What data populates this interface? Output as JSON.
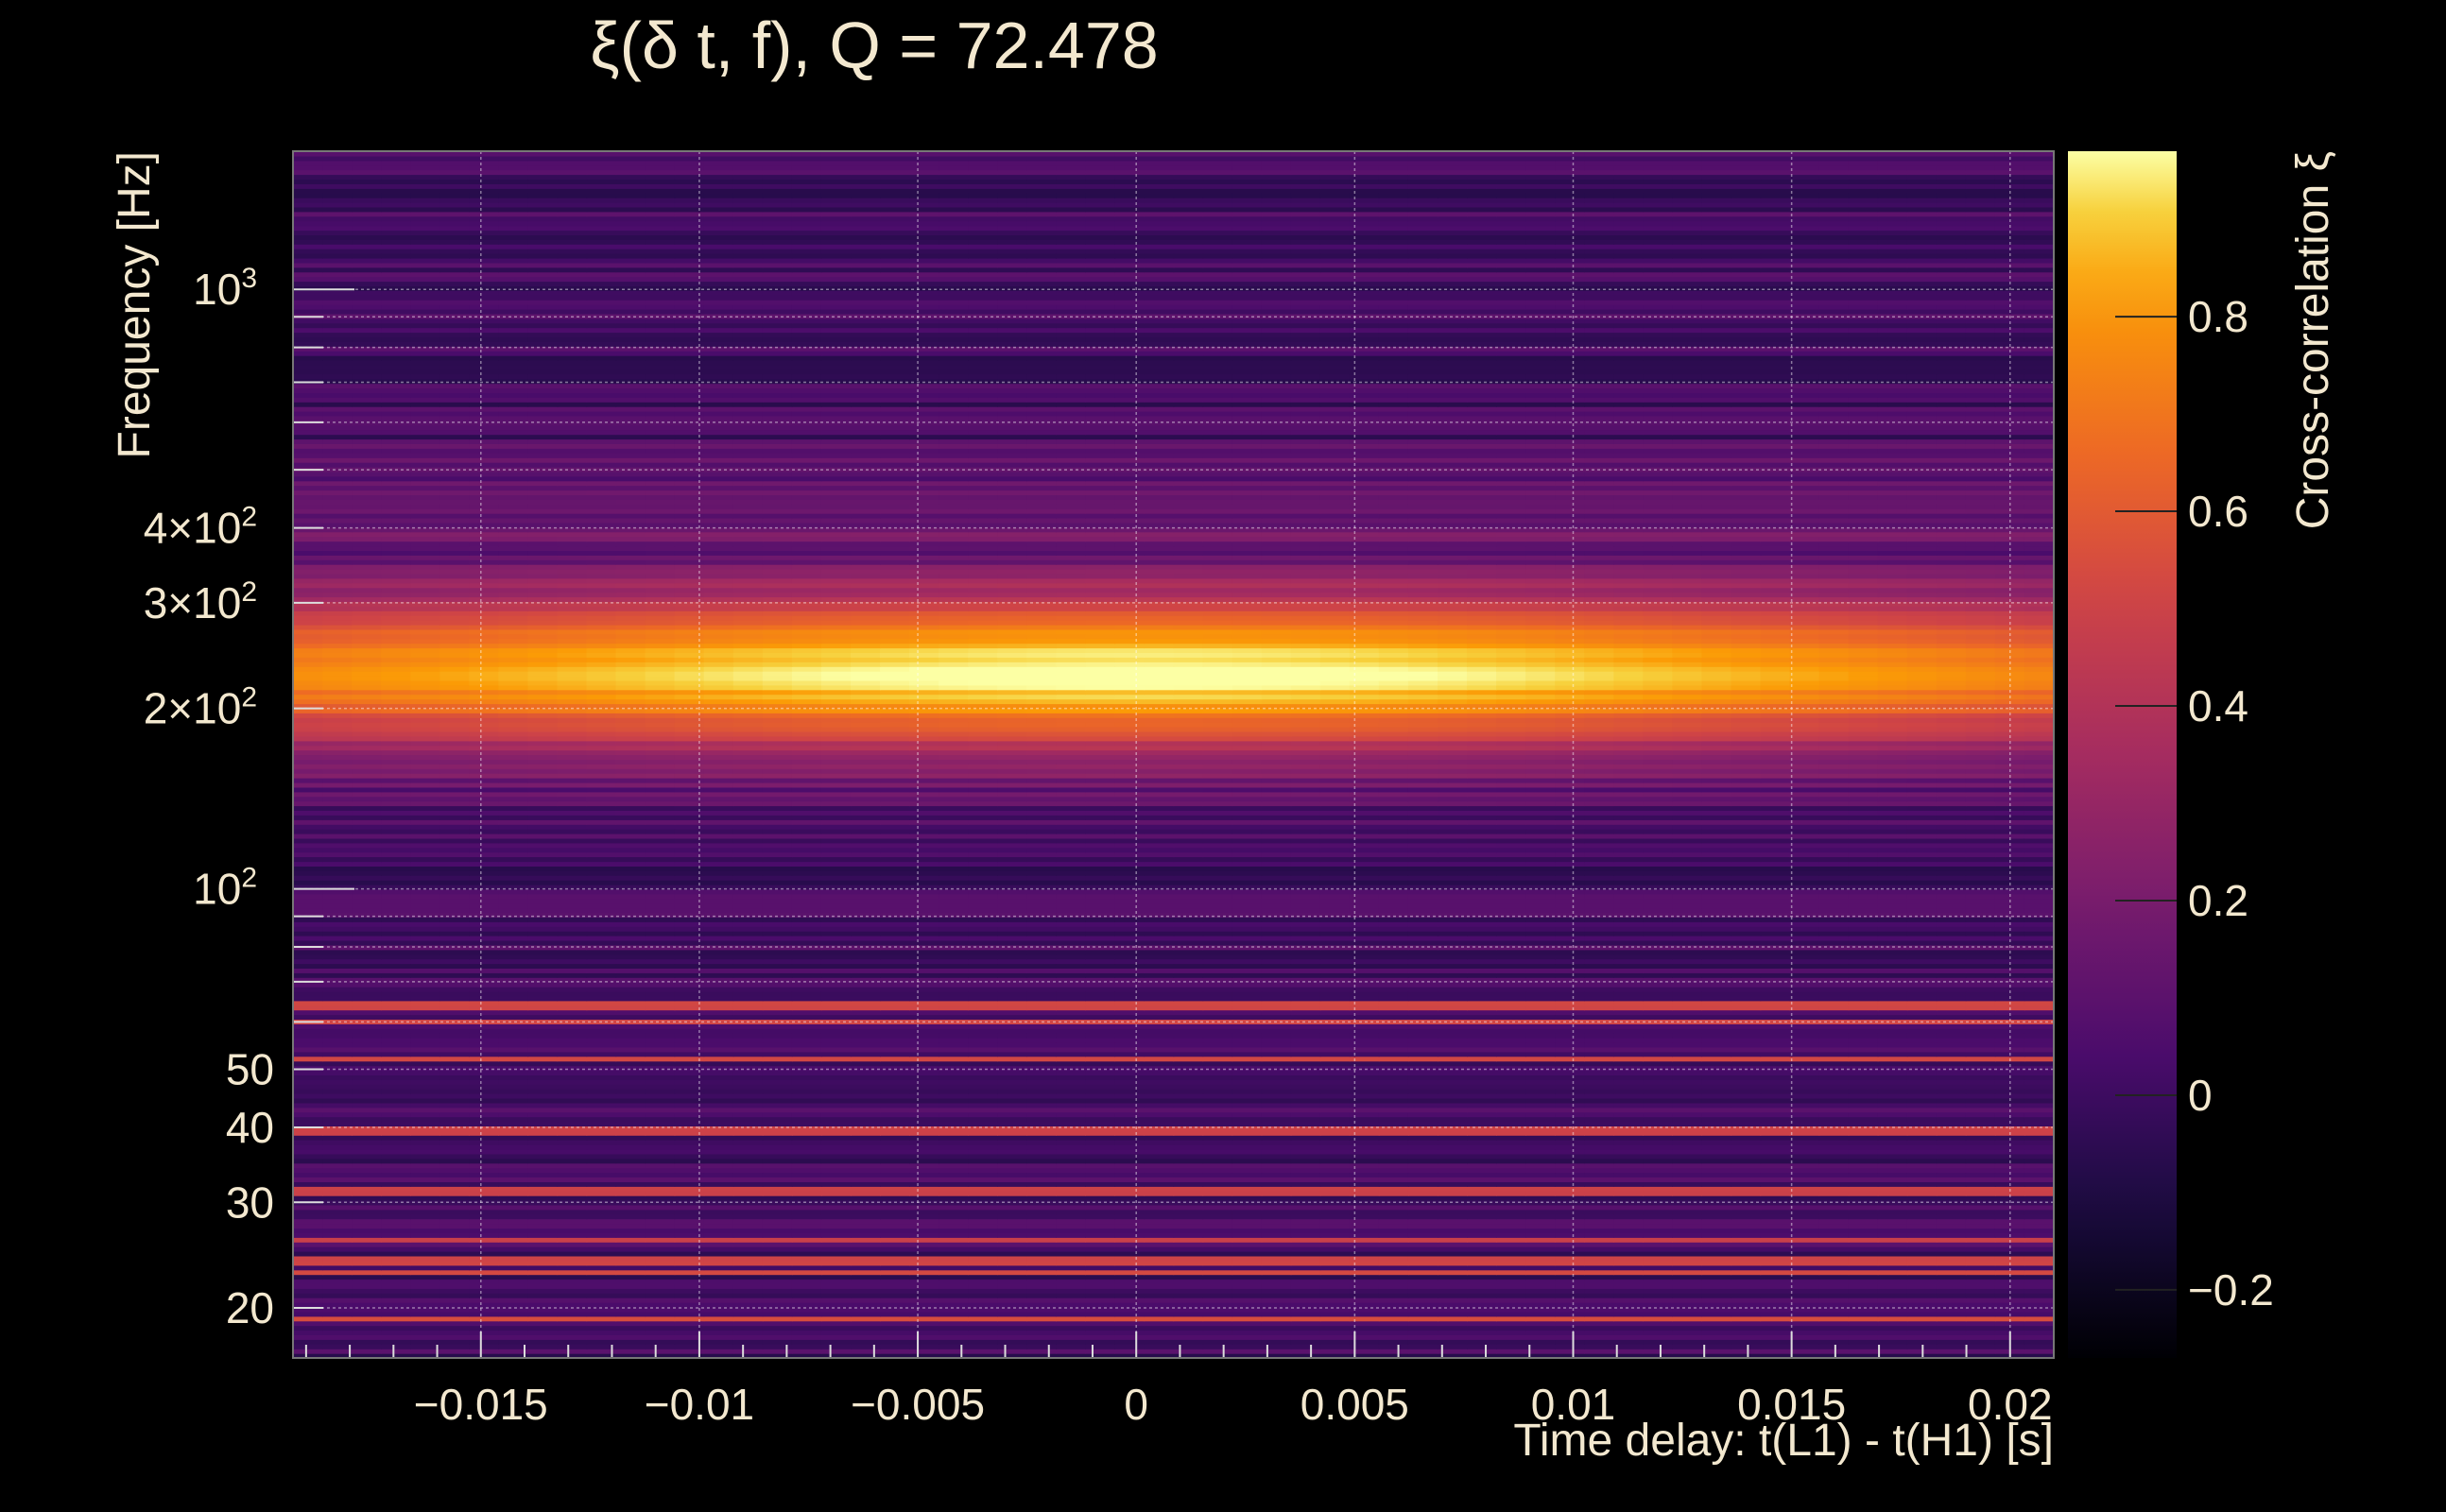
{
  "chart_data": {
    "type": "heatmap",
    "title": "ξ(δ t, f), Q = 72.478",
    "xlabel": "Time delay: t(L1) - t(H1) [s]",
    "ylabel": "Frequency [Hz]",
    "colorbar_label": "Cross-correlation ξ",
    "x_scale": "linear",
    "y_scale": "log",
    "xlim": [
      -0.0193,
      0.021
    ],
    "ylim": [
      16.5,
      1700
    ],
    "clim": [
      -0.27,
      0.97
    ],
    "colormap": "inferno",
    "grid": true,
    "x_ticks": [
      {
        "value": -0.015,
        "label": "−0.015"
      },
      {
        "value": -0.01,
        "label": "−0.01"
      },
      {
        "value": -0.005,
        "label": "−0.005"
      },
      {
        "value": 0,
        "label": "0"
      },
      {
        "value": 0.005,
        "label": "0.005"
      },
      {
        "value": 0.01,
        "label": "0.01"
      },
      {
        "value": 0.015,
        "label": "0.015"
      },
      {
        "value": 0.02,
        "label": "0.02"
      }
    ],
    "y_ticks": [
      {
        "value": 20,
        "label": "20"
      },
      {
        "value": 30,
        "label": "30"
      },
      {
        "value": 40,
        "label": "40"
      },
      {
        "value": 50,
        "label": "50"
      },
      {
        "value": 100,
        "label": "10",
        "sup": "2"
      },
      {
        "value": 200,
        "label": "2×10",
        "sup": "2"
      },
      {
        "value": 300,
        "label": "3×10",
        "sup": "2"
      },
      {
        "value": 400,
        "label": "4×10",
        "sup": "2"
      },
      {
        "value": 1000,
        "label": "10",
        "sup": "3"
      }
    ],
    "colorbar_ticks": [
      {
        "value": -0.2,
        "label": "−0.2"
      },
      {
        "value": 0,
        "label": "0"
      },
      {
        "value": 0.2,
        "label": "0.2"
      },
      {
        "value": 0.4,
        "label": "0.4"
      },
      {
        "value": 0.6,
        "label": "0.6"
      },
      {
        "value": 0.8,
        "label": "0.8"
      }
    ],
    "peak": {
      "time_delay": 0.0,
      "frequency_hz": 230,
      "value": 0.97
    }
  }
}
